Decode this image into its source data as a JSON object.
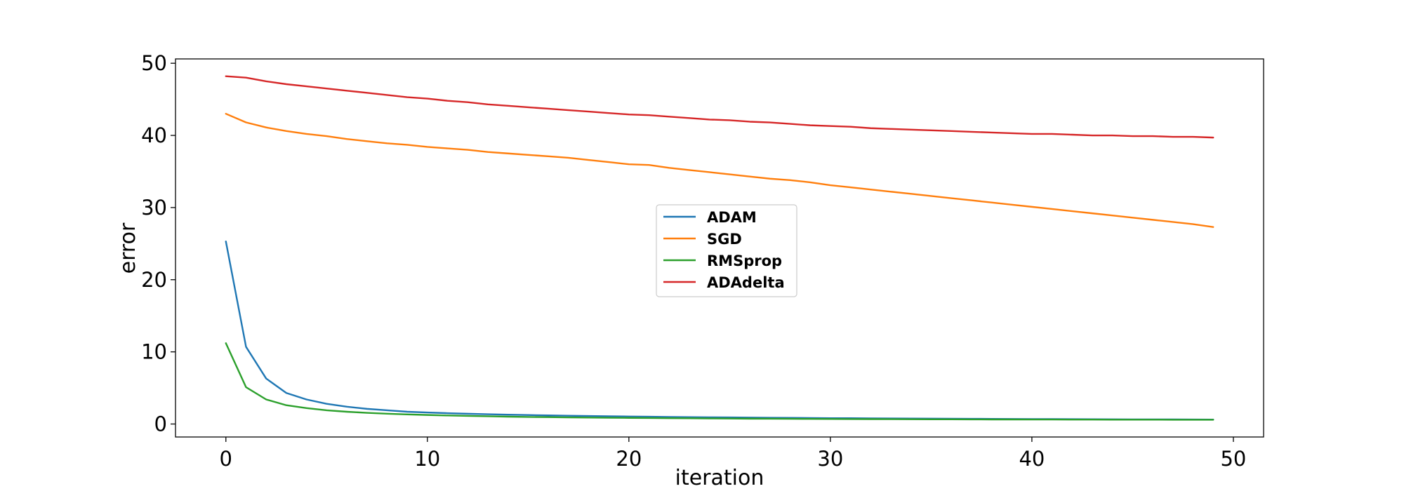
{
  "chart_data": {
    "type": "line",
    "title": "",
    "xlabel": "iteration",
    "ylabel": "error",
    "xlim": [
      -2.5,
      51.5
    ],
    "ylim": [
      -1.8,
      50.6
    ],
    "xticks": [
      0,
      10,
      20,
      30,
      40,
      50
    ],
    "yticks": [
      0,
      10,
      20,
      30,
      40,
      50
    ],
    "grid": false,
    "legend_position": "center",
    "x": [
      0,
      1,
      2,
      3,
      4,
      5,
      6,
      7,
      8,
      9,
      10,
      11,
      12,
      13,
      14,
      15,
      16,
      17,
      18,
      19,
      20,
      21,
      22,
      23,
      24,
      25,
      26,
      27,
      28,
      29,
      30,
      31,
      32,
      33,
      34,
      35,
      36,
      37,
      38,
      39,
      40,
      41,
      42,
      43,
      44,
      45,
      46,
      47,
      48,
      49
    ],
    "series": [
      {
        "name": "ADAM",
        "color": "#1f77b4",
        "values": [
          25.3,
          10.7,
          6.3,
          4.3,
          3.4,
          2.8,
          2.4,
          2.1,
          1.9,
          1.7,
          1.6,
          1.5,
          1.42,
          1.35,
          1.29,
          1.24,
          1.19,
          1.15,
          1.11,
          1.07,
          1.04,
          1.01,
          0.98,
          0.95,
          0.93,
          0.91,
          0.89,
          0.87,
          0.85,
          0.83,
          0.81,
          0.8,
          0.78,
          0.77,
          0.76,
          0.74,
          0.73,
          0.72,
          0.71,
          0.7,
          0.69,
          0.68,
          0.67,
          0.66,
          0.65,
          0.64,
          0.63,
          0.63,
          0.62,
          0.61
        ]
      },
      {
        "name": "SGD",
        "color": "#ff7f0e",
        "values": [
          43.0,
          41.8,
          41.1,
          40.6,
          40.2,
          39.9,
          39.5,
          39.2,
          38.9,
          38.7,
          38.4,
          38.2,
          38.0,
          37.7,
          37.5,
          37.3,
          37.1,
          36.9,
          36.6,
          36.3,
          36.0,
          35.9,
          35.5,
          35.2,
          34.9,
          34.6,
          34.3,
          34.0,
          33.8,
          33.5,
          33.1,
          32.8,
          32.5,
          32.2,
          31.9,
          31.6,
          31.3,
          31.0,
          30.7,
          30.4,
          30.1,
          29.8,
          29.5,
          29.2,
          28.9,
          28.6,
          28.3,
          28.0,
          27.7,
          27.3
        ]
      },
      {
        "name": "RMSprop",
        "color": "#2ca02c",
        "values": [
          11.2,
          5.1,
          3.4,
          2.6,
          2.2,
          1.9,
          1.7,
          1.55,
          1.43,
          1.33,
          1.25,
          1.18,
          1.12,
          1.07,
          1.02,
          0.98,
          0.95,
          0.92,
          0.89,
          0.87,
          0.85,
          0.83,
          0.81,
          0.79,
          0.77,
          0.76,
          0.74,
          0.73,
          0.72,
          0.71,
          0.7,
          0.69,
          0.68,
          0.67,
          0.66,
          0.65,
          0.65,
          0.64,
          0.63,
          0.63,
          0.62,
          0.62,
          0.61,
          0.61,
          0.6,
          0.6,
          0.6,
          0.59,
          0.59,
          0.59
        ]
      },
      {
        "name": "ADAdelta",
        "color": "#d62728",
        "values": [
          48.2,
          48.0,
          47.5,
          47.1,
          46.8,
          46.5,
          46.2,
          45.9,
          45.6,
          45.3,
          45.1,
          44.8,
          44.6,
          44.3,
          44.1,
          43.9,
          43.7,
          43.5,
          43.3,
          43.1,
          42.9,
          42.8,
          42.6,
          42.4,
          42.2,
          42.1,
          41.9,
          41.8,
          41.6,
          41.4,
          41.3,
          41.2,
          41.0,
          40.9,
          40.8,
          40.7,
          40.6,
          40.5,
          40.4,
          40.3,
          40.2,
          40.2,
          40.1,
          40.0,
          40.0,
          39.9,
          39.9,
          39.8,
          39.8,
          39.7
        ]
      }
    ]
  }
}
